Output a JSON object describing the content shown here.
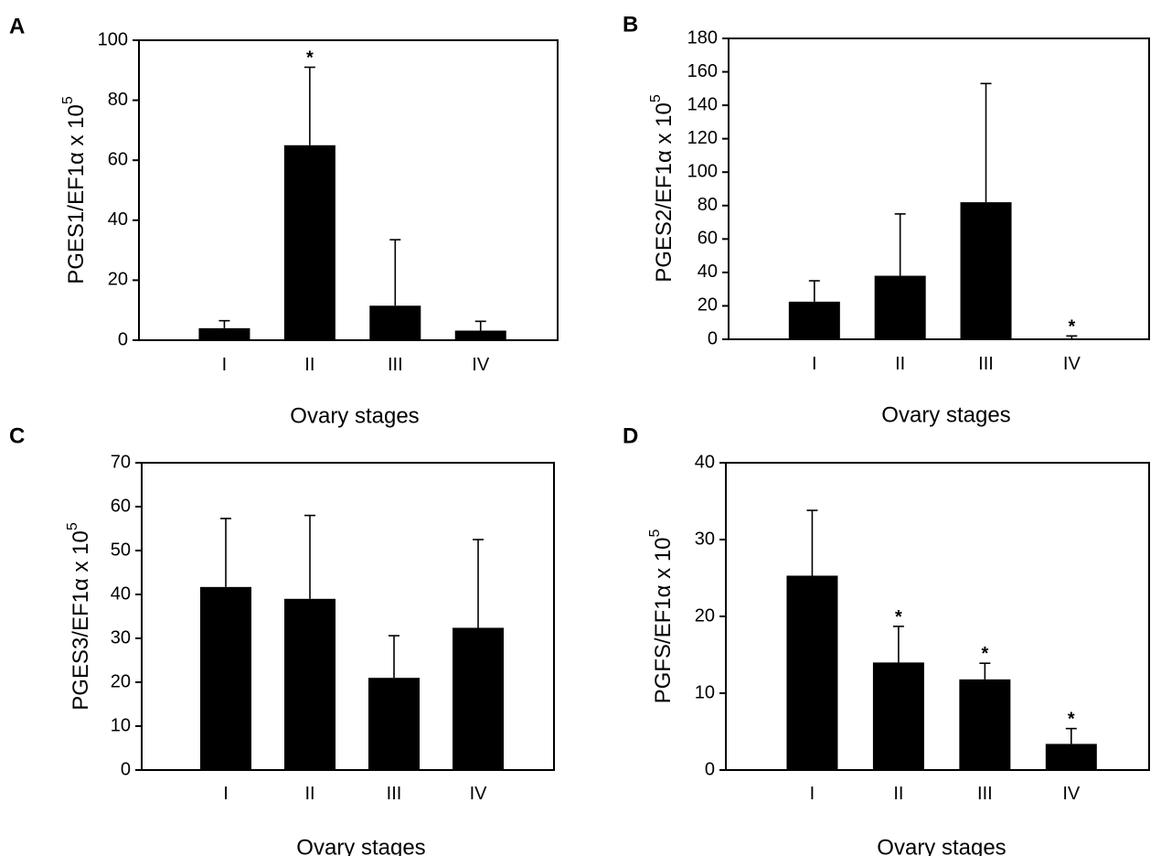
{
  "chart_data": [
    {
      "panel": "A",
      "type": "bar",
      "categories": [
        "I",
        "II",
        "III",
        "IV"
      ],
      "values": [
        4,
        65,
        11.5,
        3.2
      ],
      "error_upper": [
        6.5,
        91,
        33.5,
        6.3
      ],
      "significance": [
        "",
        "*",
        "",
        ""
      ],
      "xlabel": "Ovary stages",
      "ylabel": "PGES1/EF1α x 10",
      "ylabel_sup": "5",
      "ylim": [
        0,
        100
      ],
      "yticks": [
        0,
        20,
        40,
        60,
        80,
        100
      ]
    },
    {
      "panel": "B",
      "type": "bar",
      "categories": [
        "I",
        "II",
        "III",
        "IV"
      ],
      "values": [
        22.5,
        38,
        82,
        0.5
      ],
      "error_upper": [
        35,
        75,
        153,
        2
      ],
      "significance": [
        "",
        "",
        "",
        "*"
      ],
      "xlabel": "Ovary stages",
      "ylabel": "PGES2/EF1α x 10",
      "ylabel_sup": "5",
      "ylim": [
        0,
        180
      ],
      "yticks": [
        0,
        20,
        40,
        60,
        80,
        100,
        120,
        140,
        160,
        180
      ]
    },
    {
      "panel": "C",
      "type": "bar",
      "categories": [
        "I",
        "II",
        "III",
        "IV"
      ],
      "values": [
        41.7,
        39,
        21,
        32.4
      ],
      "error_upper": [
        57.3,
        58,
        30.6,
        52.5
      ],
      "significance": [
        "",
        "",
        "",
        ""
      ],
      "xlabel": "Ovary stages",
      "ylabel": "PGES3/EF1α x 10",
      "ylabel_sup": "5",
      "ylim": [
        0,
        70
      ],
      "yticks": [
        0,
        10,
        20,
        30,
        40,
        50,
        60,
        70
      ]
    },
    {
      "panel": "D",
      "type": "bar",
      "categories": [
        "I",
        "II",
        "III",
        "IV"
      ],
      "values": [
        25.3,
        14,
        11.8,
        3.4
      ],
      "error_upper": [
        33.8,
        18.7,
        13.9,
        5.4
      ],
      "significance": [
        "",
        "*",
        "*",
        "*"
      ],
      "xlabel": "Ovary stages",
      "ylabel": "PGFS/EF1α x 10",
      "ylabel_sup": "5",
      "ylim": [
        0,
        40
      ],
      "yticks": [
        0,
        10,
        20,
        30,
        40
      ]
    }
  ]
}
